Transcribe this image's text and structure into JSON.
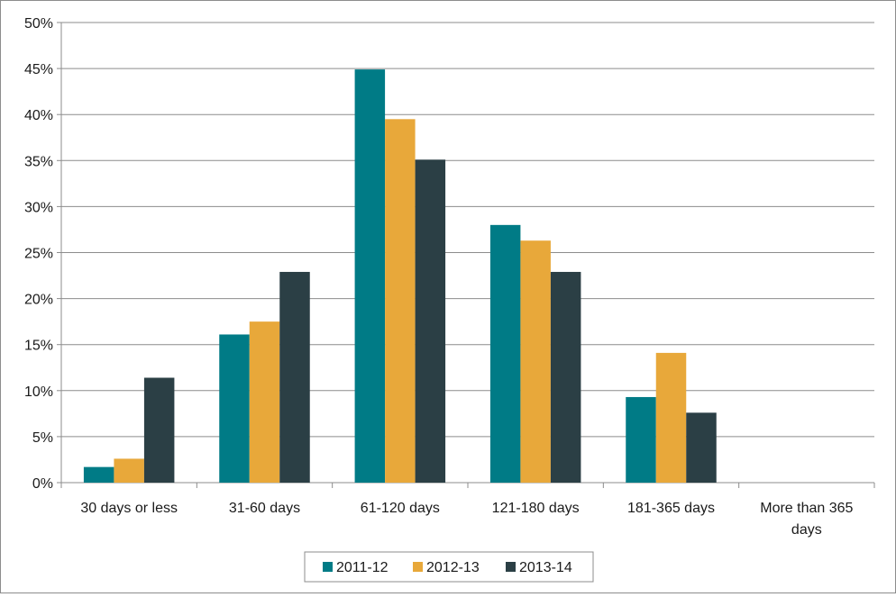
{
  "chart_data": {
    "type": "bar",
    "categories": [
      [
        "30 days or less"
      ],
      [
        "31-60 days"
      ],
      [
        "61-120 days"
      ],
      [
        "121-180 days"
      ],
      [
        "181-365 days"
      ],
      [
        "More than 365",
        "days"
      ]
    ],
    "series": [
      {
        "name": "2011-12",
        "color": "#007b86",
        "values": [
          1.7,
          16.1,
          44.9,
          28.0,
          9.3,
          0
        ]
      },
      {
        "name": "2012-13",
        "color": "#e8a83a",
        "values": [
          2.6,
          17.5,
          39.5,
          26.3,
          14.1,
          0
        ]
      },
      {
        "name": "2013-14",
        "color": "#2b3f45",
        "values": [
          11.4,
          22.9,
          35.1,
          22.9,
          7.6,
          0
        ]
      }
    ],
    "y_ticks": [
      "0%",
      "5%",
      "10%",
      "15%",
      "20%",
      "25%",
      "30%",
      "35%",
      "40%",
      "45%",
      "50%"
    ],
    "ylim": [
      0,
      50
    ],
    "grid": true,
    "legend_position": "bottom-center"
  }
}
